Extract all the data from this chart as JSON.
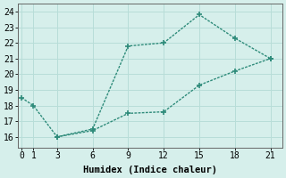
{
  "line1_x": [
    0,
    1,
    3,
    6,
    9,
    12,
    15,
    18,
    21
  ],
  "line1_y": [
    18.5,
    18.0,
    16.0,
    16.5,
    21.8,
    22.0,
    23.8,
    22.3,
    21.0
  ],
  "line2_x": [
    3,
    6,
    9,
    12,
    15,
    18,
    21
  ],
  "line2_y": [
    16.0,
    16.4,
    17.5,
    17.6,
    19.3,
    20.2,
    21.0
  ],
  "line_color": "#2e8b7a",
  "bg_color": "#d6efeb",
  "grid_color": "#b8ddd8",
  "xlabel": "Humidex (Indice chaleur)",
  "xlim": [
    -0.3,
    22.0
  ],
  "ylim": [
    15.3,
    24.5
  ],
  "xticks": [
    0,
    1,
    3,
    6,
    9,
    12,
    15,
    18,
    21
  ],
  "yticks": [
    16,
    17,
    18,
    19,
    20,
    21,
    22,
    23,
    24
  ],
  "markersize": 4.0,
  "linewidth": 1.0,
  "font_size": 7.5
}
